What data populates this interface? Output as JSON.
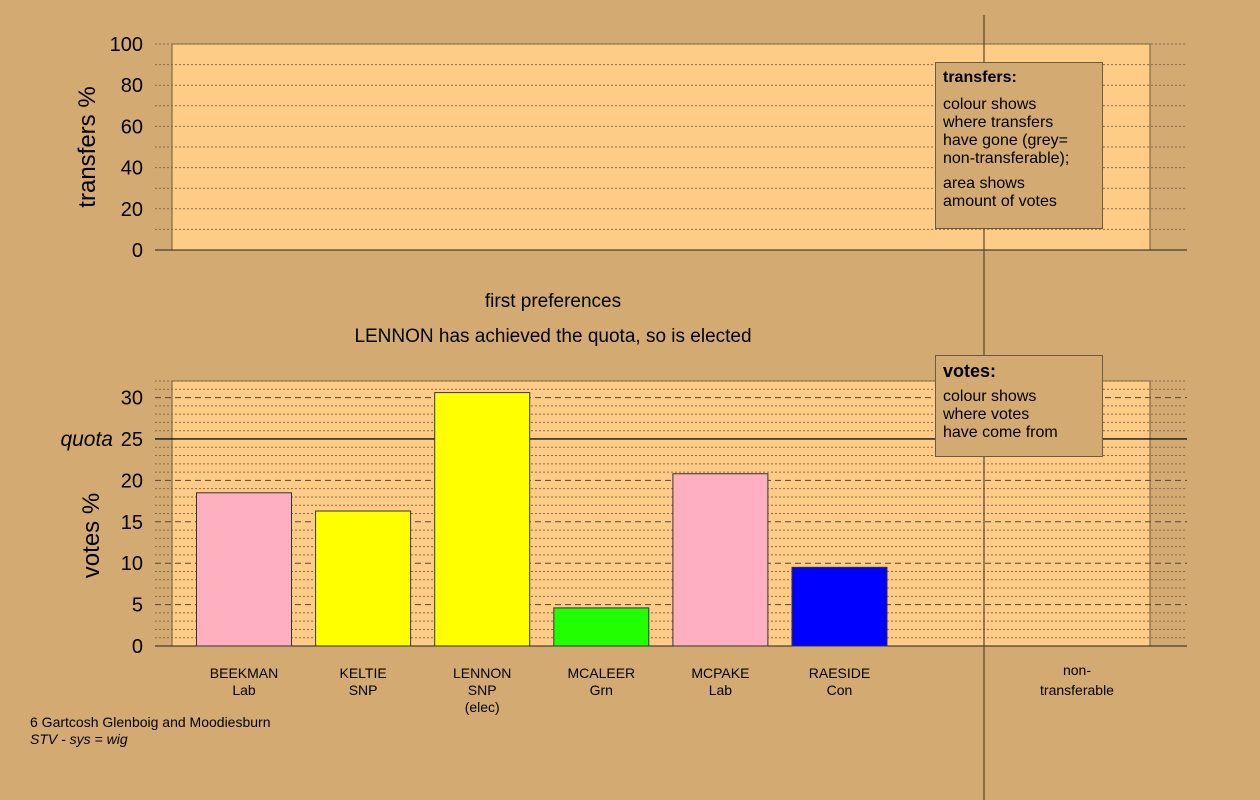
{
  "chart_data": [
    {
      "type": "bar",
      "title": "",
      "ylabel": "transfers %",
      "ylim": [
        0,
        100
      ],
      "yticks": [
        0,
        20,
        40,
        60,
        80,
        100
      ],
      "grid": true,
      "series": []
    },
    {
      "type": "bar",
      "title": "first preferences",
      "subtitle": "LENNON has achieved the quota, so is elected",
      "ylabel": "votes %",
      "ylim": [
        0,
        32
      ],
      "yticks": [
        0,
        5,
        10,
        15,
        20,
        25,
        30
      ],
      "grid": true,
      "quota": {
        "label": "quota",
        "value": 25
      },
      "categories": [
        {
          "name": "BEEKMAN",
          "party": "Lab",
          "note": ""
        },
        {
          "name": "KELTIE",
          "party": "SNP",
          "note": ""
        },
        {
          "name": "LENNON",
          "party": "SNP",
          "note": "(elec)"
        },
        {
          "name": "MCALEER",
          "party": "Grn",
          "note": ""
        },
        {
          "name": "MCPAKE",
          "party": "Lab",
          "note": ""
        },
        {
          "name": "RAESIDE",
          "party": "Con",
          "note": ""
        }
      ],
      "values": [
        18.5,
        16.3,
        30.6,
        4.6,
        20.8,
        9.5
      ],
      "colors": [
        "#ffb0c0",
        "#ffff00",
        "#ffff00",
        "#22ff00",
        "#ffb0c0",
        "#0000ff"
      ],
      "non_transferable_label": [
        "non-",
        "transferable"
      ]
    }
  ],
  "legend_transfers": {
    "title": "transfers:",
    "lines1": [
      "colour shows",
      "where transfers",
      "have gone (grey=",
      "non-transferable);"
    ],
    "lines2": [
      "area shows",
      "amount of votes"
    ]
  },
  "legend_votes": {
    "title": "votes:",
    "lines": [
      "colour shows",
      "where votes",
      "have come from"
    ]
  },
  "footer": {
    "ward": "6 Gartcosh Glenboig and Moodiesburn",
    "system": "STV - sys = wig"
  },
  "colors": {
    "background": "#d4aa73",
    "plot_area": "#ffcc88"
  }
}
